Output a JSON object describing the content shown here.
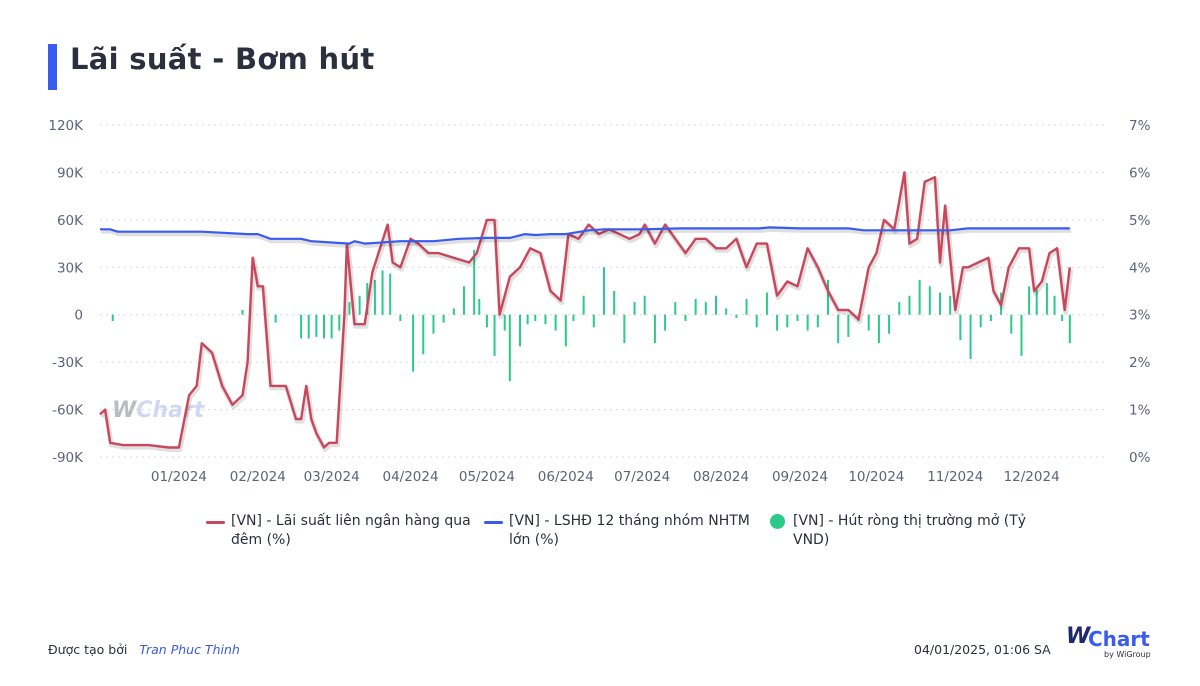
{
  "title": "Lãi suất - Bơm hút",
  "colors": {
    "title_accent": "#3a5bf0",
    "overnight_rate": "#c9475c",
    "deposit_rate": "#3a5bf0",
    "net_absorption": "#2bc98a",
    "grid": "#d6d9e0",
    "axis_text": "#5b6478"
  },
  "legend": [
    {
      "label": "[VN] - Lãi suất liên ngân hàng qua đêm (%)",
      "icon": "line-swatch",
      "color": "#c9475c"
    },
    {
      "label": "[VN] - LSHĐ 12 tháng nhóm NHTM lớn (%)",
      "icon": "line-swatch",
      "color": "#3a5bf0"
    },
    {
      "label": "[VN] - Hút ròng thị trường mở (Tỷ VND)",
      "icon": "dot-swatch",
      "color": "#2bc98a"
    }
  ],
  "footer": {
    "created_by_label": "Được tạo bởi",
    "author": "Tran Phuc Thinh",
    "timestamp": "04/01/2025, 01:06 SA"
  },
  "logo": {
    "w": "W",
    "chart": "Chart",
    "by": "by WiGroup"
  },
  "watermark": {
    "w": "W",
    "chart": "Chart"
  },
  "chart_data": {
    "type": "bar",
    "grid": true,
    "legend_position": "bottom-center",
    "x_start": "2023-12-01",
    "x_end": "2024-12-31",
    "x_tick_labels": [
      "01/2024",
      "02/2024",
      "03/2024",
      "04/2024",
      "05/2024",
      "06/2024",
      "07/2024",
      "08/2024",
      "09/2024",
      "10/2024",
      "11/2024",
      "12/2024"
    ],
    "x_tick_dates": [
      "2024-01-01",
      "2024-02-01",
      "2024-03-01",
      "2024-04-01",
      "2024-05-01",
      "2024-06-01",
      "2024-07-01",
      "2024-08-01",
      "2024-09-01",
      "2024-10-01",
      "2024-11-01",
      "2024-12-01"
    ],
    "y_left": {
      "ticks": [
        "120K",
        "90K",
        "60K",
        "30K",
        "0",
        "-30K",
        "-60K",
        "-90K"
      ],
      "range": [
        -90000,
        120000
      ]
    },
    "y_right": {
      "ticks": [
        "7%",
        "6%",
        "5%",
        "4%",
        "3%",
        "2%",
        "1%",
        "0%"
      ],
      "range": [
        0,
        7
      ]
    },
    "series": [
      {
        "name": "[VN] - Lãi suất liên ngân hàng qua đêm (%)",
        "type": "line",
        "axis": "right",
        "x": [
          "2023-12-01",
          "2023-12-03",
          "2023-12-05",
          "2023-12-10",
          "2023-12-20",
          "2023-12-28",
          "2024-01-01",
          "2024-01-05",
          "2024-01-08",
          "2024-01-10",
          "2024-01-14",
          "2024-01-18",
          "2024-01-22",
          "2024-01-26",
          "2024-01-28",
          "2024-01-30",
          "2024-02-01",
          "2024-02-03",
          "2024-02-06",
          "2024-02-08",
          "2024-02-12",
          "2024-02-16",
          "2024-02-18",
          "2024-02-20",
          "2024-02-22",
          "2024-02-24",
          "2024-02-27",
          "2024-02-29",
          "2024-03-03",
          "2024-03-06",
          "2024-03-07",
          "2024-03-10",
          "2024-03-14",
          "2024-03-17",
          "2024-03-20",
          "2024-03-23",
          "2024-03-25",
          "2024-03-28",
          "2024-04-01",
          "2024-04-04",
          "2024-04-08",
          "2024-04-12",
          "2024-04-18",
          "2024-04-24",
          "2024-04-27",
          "2024-05-01",
          "2024-05-04",
          "2024-05-06",
          "2024-05-10",
          "2024-05-14",
          "2024-05-18",
          "2024-05-22",
          "2024-05-26",
          "2024-05-30",
          "2024-06-02",
          "2024-06-06",
          "2024-06-10",
          "2024-06-14",
          "2024-06-18",
          "2024-06-22",
          "2024-06-26",
          "2024-06-30",
          "2024-07-02",
          "2024-07-06",
          "2024-07-10",
          "2024-07-14",
          "2024-07-18",
          "2024-07-22",
          "2024-07-26",
          "2024-07-30",
          "2024-08-03",
          "2024-08-07",
          "2024-08-11",
          "2024-08-15",
          "2024-08-19",
          "2024-08-23",
          "2024-08-27",
          "2024-08-31",
          "2024-09-04",
          "2024-09-08",
          "2024-09-12",
          "2024-09-16",
          "2024-09-20",
          "2024-09-24",
          "2024-09-28",
          "2024-10-01",
          "2024-10-04",
          "2024-10-08",
          "2024-10-12",
          "2024-10-14",
          "2024-10-17",
          "2024-10-20",
          "2024-10-24",
          "2024-10-26",
          "2024-10-28",
          "2024-11-01",
          "2024-11-04",
          "2024-11-06",
          "2024-11-10",
          "2024-11-14",
          "2024-11-16",
          "2024-11-19",
          "2024-11-22",
          "2024-11-26",
          "2024-11-30",
          "2024-12-02",
          "2024-12-05",
          "2024-12-08",
          "2024-12-11",
          "2024-12-14",
          "2024-12-16"
        ],
        "values": [
          0.9,
          1.0,
          0.3,
          0.25,
          0.25,
          0.2,
          0.2,
          1.3,
          1.5,
          2.4,
          2.2,
          1.5,
          1.1,
          1.3,
          2.0,
          4.2,
          3.6,
          3.6,
          1.5,
          1.5,
          1.5,
          0.8,
          0.8,
          1.5,
          0.8,
          0.5,
          0.2,
          0.3,
          0.3,
          3.0,
          4.5,
          2.8,
          2.8,
          3.9,
          4.4,
          4.9,
          4.1,
          4.0,
          4.6,
          4.5,
          4.3,
          4.3,
          4.2,
          4.1,
          4.3,
          5.0,
          5.0,
          3.0,
          3.8,
          4.0,
          4.4,
          4.3,
          3.5,
          3.3,
          4.7,
          4.6,
          4.9,
          4.7,
          4.8,
          4.7,
          4.6,
          4.7,
          4.9,
          4.5,
          4.9,
          4.6,
          4.3,
          4.6,
          4.6,
          4.4,
          4.4,
          4.6,
          4.0,
          4.5,
          4.5,
          3.4,
          3.7,
          3.6,
          4.4,
          4.0,
          3.5,
          3.1,
          3.1,
          2.9,
          4.0,
          4.3,
          5.0,
          4.8,
          6.0,
          4.5,
          4.6,
          5.8,
          5.9,
          4.1,
          5.3,
          3.1,
          4.0,
          4.0,
          4.1,
          4.2,
          3.5,
          3.2,
          4.0,
          4.4,
          4.4,
          3.5,
          3.7,
          4.3,
          4.4,
          3.1,
          4.0
        ]
      },
      {
        "name": "[VN] - LSHĐ 12 tháng nhóm NHTM lớn (%)",
        "type": "line",
        "axis": "right",
        "x": [
          "2023-12-01",
          "2023-12-05",
          "2023-12-08",
          "2024-01-10",
          "2024-01-28",
          "2024-02-01",
          "2024-02-06",
          "2024-02-18",
          "2024-02-22",
          "2024-03-08",
          "2024-03-10",
          "2024-03-14",
          "2024-03-28",
          "2024-04-10",
          "2024-04-20",
          "2024-05-01",
          "2024-05-10",
          "2024-05-16",
          "2024-05-20",
          "2024-05-26",
          "2024-06-01",
          "2024-06-10",
          "2024-06-16",
          "2024-07-01",
          "2024-07-16",
          "2024-08-16",
          "2024-08-20",
          "2024-09-01",
          "2024-09-20",
          "2024-09-26",
          "2024-10-02",
          "2024-10-30",
          "2024-11-06",
          "2024-12-16"
        ],
        "values": [
          4.8,
          4.8,
          4.75,
          4.75,
          4.7,
          4.7,
          4.6,
          4.6,
          4.55,
          4.5,
          4.55,
          4.5,
          4.55,
          4.55,
          4.6,
          4.62,
          4.62,
          4.7,
          4.68,
          4.7,
          4.7,
          4.78,
          4.8,
          4.8,
          4.82,
          4.82,
          4.84,
          4.82,
          4.82,
          4.78,
          4.78,
          4.78,
          4.82,
          4.82
        ]
      },
      {
        "name": "[VN] - Hút ròng thị trường mở (Tỷ VND)",
        "type": "bar",
        "axis": "left",
        "x": [
          "2023-12-06",
          "2024-01-26",
          "2024-02-08",
          "2024-02-18",
          "2024-02-21",
          "2024-02-24",
          "2024-02-27",
          "2024-03-01",
          "2024-03-04",
          "2024-03-08",
          "2024-03-12",
          "2024-03-15",
          "2024-03-18",
          "2024-03-21",
          "2024-03-24",
          "2024-03-28",
          "2024-04-02",
          "2024-04-06",
          "2024-04-10",
          "2024-04-14",
          "2024-04-18",
          "2024-04-22",
          "2024-04-26",
          "2024-04-28",
          "2024-05-01",
          "2024-05-04",
          "2024-05-08",
          "2024-05-10",
          "2024-05-14",
          "2024-05-17",
          "2024-05-20",
          "2024-05-24",
          "2024-05-28",
          "2024-06-01",
          "2024-06-04",
          "2024-06-08",
          "2024-06-12",
          "2024-06-16",
          "2024-06-20",
          "2024-06-24",
          "2024-06-28",
          "2024-07-02",
          "2024-07-06",
          "2024-07-10",
          "2024-07-14",
          "2024-07-18",
          "2024-07-22",
          "2024-07-26",
          "2024-07-30",
          "2024-08-03",
          "2024-08-07",
          "2024-08-11",
          "2024-08-15",
          "2024-08-19",
          "2024-08-23",
          "2024-08-27",
          "2024-08-31",
          "2024-09-04",
          "2024-09-08",
          "2024-09-12",
          "2024-09-16",
          "2024-09-20",
          "2024-09-24",
          "2024-09-28",
          "2024-10-02",
          "2024-10-06",
          "2024-10-10",
          "2024-10-14",
          "2024-10-18",
          "2024-10-22",
          "2024-10-26",
          "2024-10-30",
          "2024-11-03",
          "2024-11-07",
          "2024-11-11",
          "2024-11-15",
          "2024-11-19",
          "2024-11-23",
          "2024-11-27",
          "2024-11-30",
          "2024-12-03",
          "2024-12-07",
          "2024-12-10",
          "2024-12-13",
          "2024-12-16"
        ],
        "values": [
          -4000,
          3000,
          -5000,
          -15000,
          -15000,
          -14000,
          -15000,
          -15000,
          -10000,
          8000,
          12000,
          20000,
          22000,
          28000,
          26000,
          -4000,
          -36000,
          -25000,
          -12000,
          -5000,
          4000,
          18000,
          41000,
          10000,
          -8000,
          -26000,
          -10000,
          -42000,
          -20000,
          -6000,
          -4000,
          -6000,
          -10000,
          -20000,
          -4000,
          12000,
          -8000,
          30000,
          15000,
          -18000,
          8000,
          12000,
          -18000,
          -10000,
          8000,
          -4000,
          10000,
          8000,
          12000,
          4000,
          -2000,
          10000,
          -8000,
          14000,
          -10000,
          -8000,
          -4000,
          -10000,
          -8000,
          22000,
          -18000,
          -14000,
          -4000,
          -10000,
          -18000,
          -12000,
          8000,
          12000,
          22000,
          18000,
          14000,
          12000,
          -16000,
          -28000,
          -8000,
          -4000,
          14000,
          -12000,
          -26000,
          18000,
          16000,
          20000,
          12000,
          -4000,
          -18000
        ]
      }
    ]
  }
}
